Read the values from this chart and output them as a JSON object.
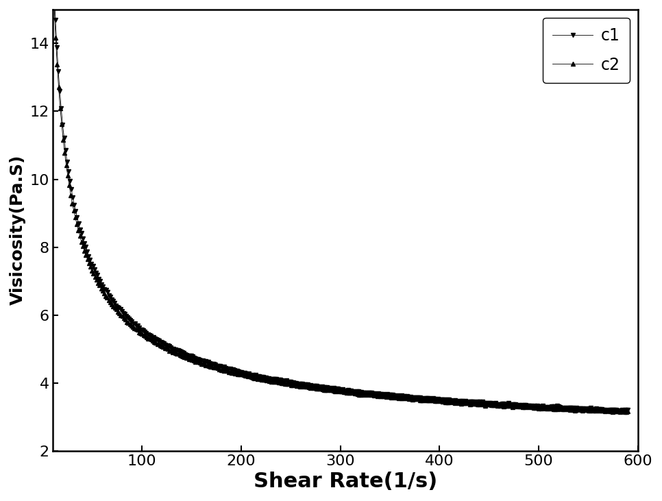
{
  "xlabel": "Shear Rate(1/s)",
  "ylabel": "Visicosity(Pa.S)",
  "xlim": [
    10,
    600
  ],
  "ylim": [
    2,
    15
  ],
  "yticks": [
    2,
    4,
    6,
    8,
    10,
    12,
    14
  ],
  "xticks": [
    100,
    200,
    300,
    400,
    500,
    600
  ],
  "line_color": "#000000",
  "legend_labels": [
    "c1",
    "c2"
  ],
  "marker_c1": "v",
  "marker_c2": "^",
  "marker_size": 4,
  "xlabel_fontsize": 22,
  "ylabel_fontsize": 18,
  "tick_fontsize": 16,
  "legend_fontsize": 17,
  "x_start": 10,
  "x_end": 590,
  "n_points_c1": 400,
  "n_points_c2": 380,
  "K1": 62.0,
  "n1": 0.62,
  "K2": 60.0,
  "n2": 0.62,
  "noise_amplitude": 0.08,
  "background_color": "#ffffff"
}
